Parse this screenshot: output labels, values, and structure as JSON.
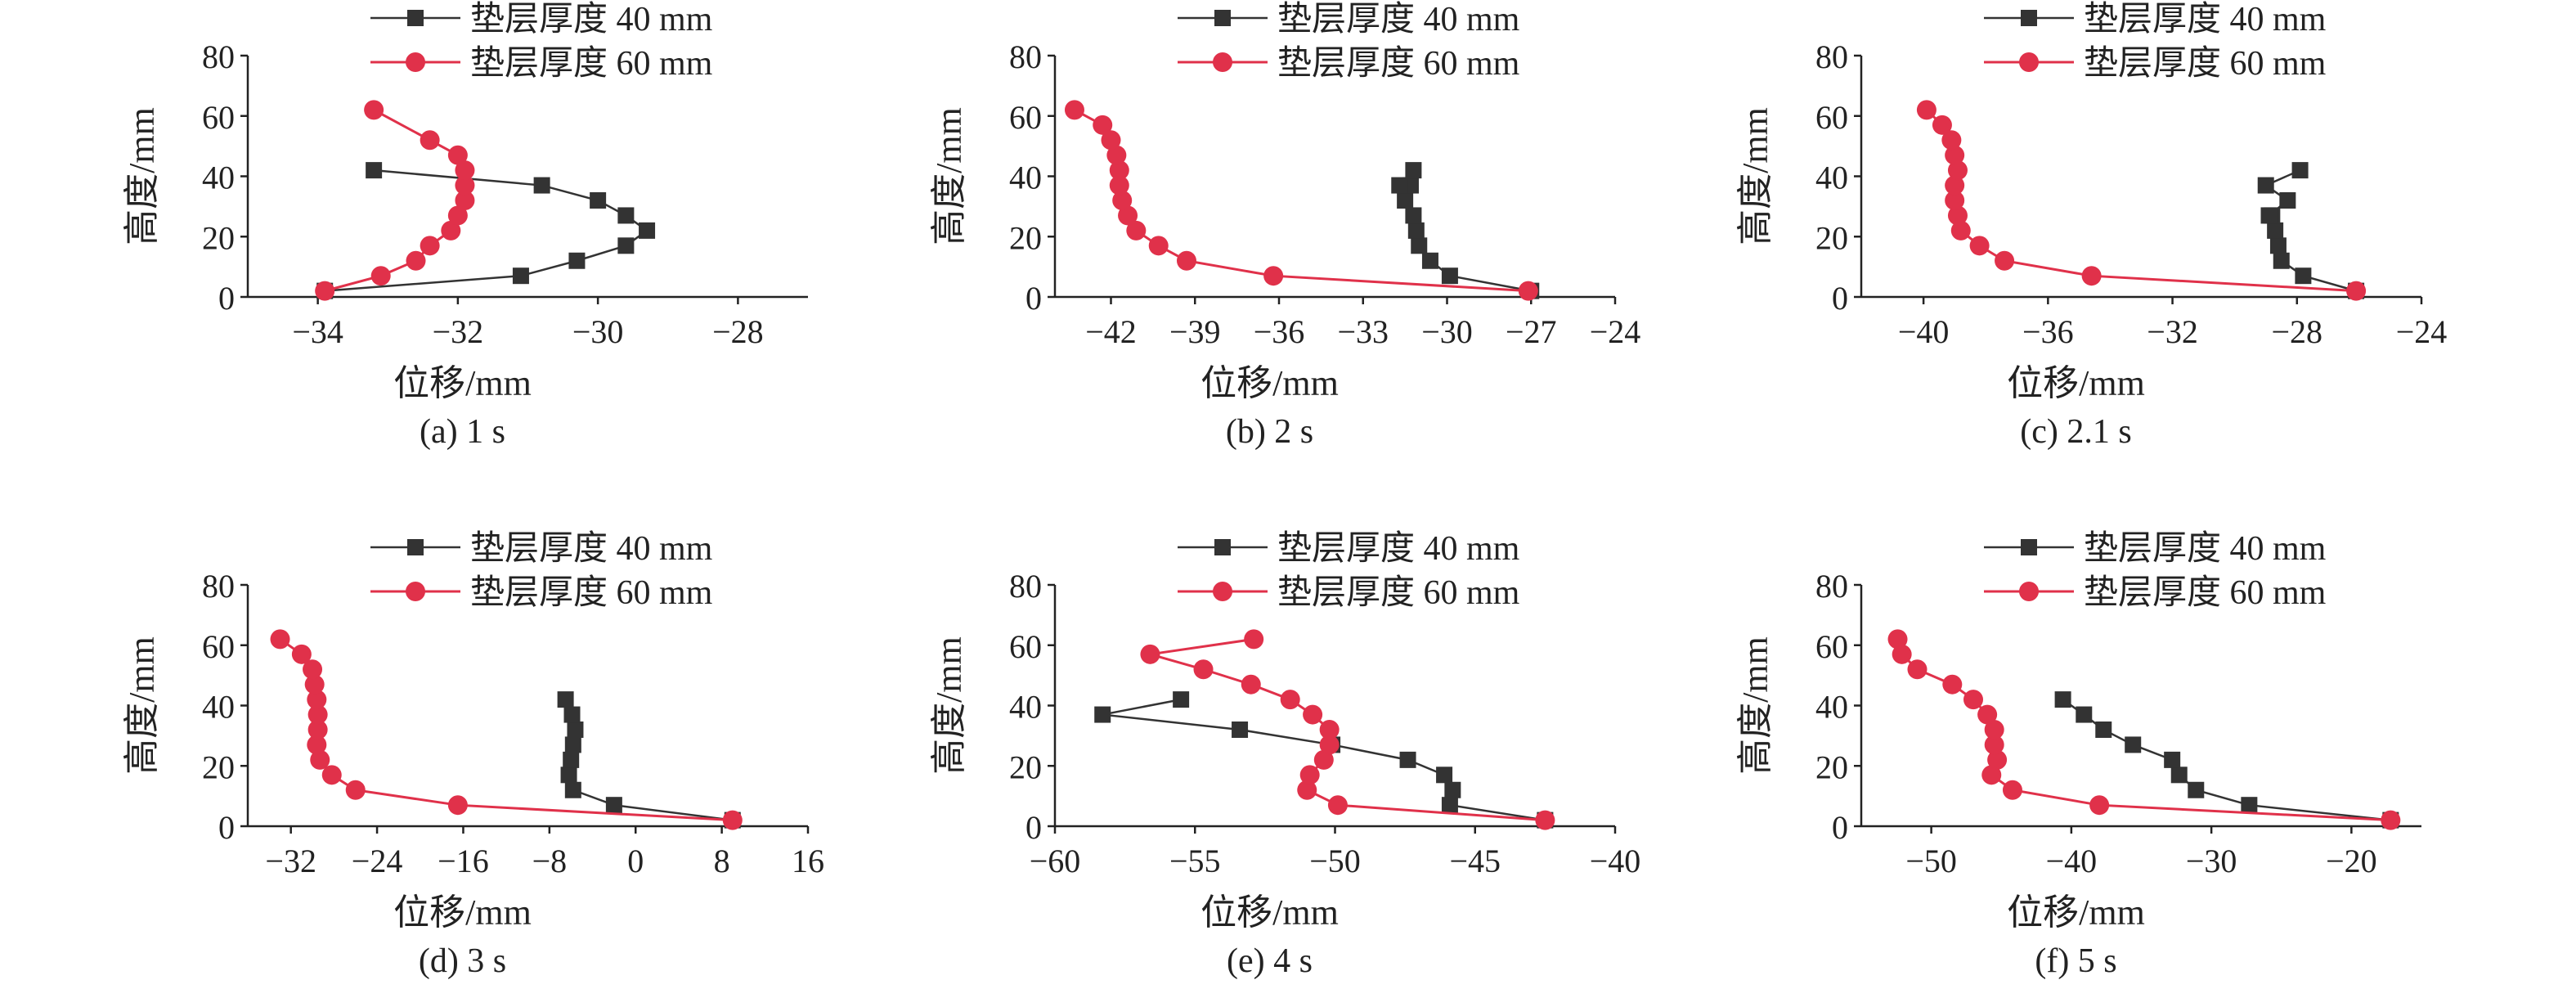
{
  "chart_data": [
    {
      "type": "line",
      "caption": "(a) 1 s",
      "xlabel": "位移/mm",
      "ylabel": "高度/mm",
      "xlim": [
        -35,
        -27
      ],
      "xticks": [
        -34,
        -32,
        -30,
        -28
      ],
      "ylim": [
        0,
        80
      ],
      "yticks": [
        0,
        20,
        40,
        60,
        80
      ],
      "legend_position": "top",
      "series": [
        {
          "name": "垫层厚度 40 mm",
          "color": "#333333",
          "marker": "square",
          "x": [
            -33.9,
            -31.1,
            -30.3,
            -29.6,
            -29.3,
            -29.6,
            -30.0,
            -30.8,
            -33.2
          ],
          "y": [
            2,
            7,
            12,
            17,
            22,
            27,
            32,
            37,
            42
          ]
        },
        {
          "name": "垫层厚度 60 mm",
          "color": "#e0314a",
          "marker": "circle",
          "x": [
            -33.9,
            -33.1,
            -32.6,
            -32.4,
            -32.1,
            -32.0,
            -31.9,
            -31.9,
            -31.9,
            -32.0,
            -32.4,
            -33.2
          ],
          "y": [
            2,
            7,
            12,
            17,
            22,
            27,
            32,
            37,
            42,
            47,
            52,
            62
          ]
        }
      ]
    },
    {
      "type": "line",
      "caption": "(b) 2 s",
      "xlabel": "位移/mm",
      "ylabel": "高度/mm",
      "xlim": [
        -44,
        -24
      ],
      "xticks": [
        -42,
        -39,
        -36,
        -33,
        -30,
        -27,
        -24
      ],
      "ylim": [
        0,
        80
      ],
      "yticks": [
        0,
        20,
        40,
        60,
        80
      ],
      "legend_position": "top",
      "series": [
        {
          "name": "垫层厚度 40 mm",
          "color": "#333333",
          "marker": "square",
          "x": [
            -27.0,
            -29.9,
            -30.6,
            -31.0,
            -31.1,
            -31.2,
            -31.5,
            -31.3,
            -31.7,
            -31.2
          ],
          "y": [
            2,
            7,
            12,
            17,
            22,
            27,
            32,
            37,
            37,
            42
          ]
        },
        {
          "name": "垫层厚度 60 mm",
          "color": "#e0314a",
          "marker": "circle",
          "x": [
            -27.1,
            -36.2,
            -39.3,
            -40.3,
            -41.1,
            -41.4,
            -41.6,
            -41.7,
            -41.7,
            -41.8,
            -42.0,
            -42.3,
            -43.3
          ],
          "y": [
            2,
            7,
            12,
            17,
            22,
            27,
            32,
            37,
            42,
            47,
            52,
            57,
            62
          ]
        }
      ]
    },
    {
      "type": "line",
      "caption": "(c) 2.1 s",
      "xlabel": "位移/mm",
      "ylabel": "高度/mm",
      "xlim": [
        -42,
        -24
      ],
      "xticks": [
        -40,
        -36,
        -32,
        -28,
        -24
      ],
      "ylim": [
        0,
        80
      ],
      "yticks": [
        0,
        20,
        40,
        60,
        80
      ],
      "legend_position": "top",
      "series": [
        {
          "name": "垫层厚度 40 mm",
          "color": "#333333",
          "marker": "square",
          "x": [
            -26.1,
            -27.8,
            -28.5,
            -28.6,
            -28.7,
            -28.8,
            -28.9,
            -28.3,
            -29.0,
            -27.9
          ],
          "y": [
            2,
            7,
            12,
            17,
            22,
            27,
            27,
            32,
            37,
            42
          ]
        },
        {
          "name": "垫层厚度 60 mm",
          "color": "#e0314a",
          "marker": "circle",
          "x": [
            -26.1,
            -34.6,
            -37.4,
            -38.2,
            -38.8,
            -38.9,
            -39.0,
            -39.0,
            -38.9,
            -39.0,
            -39.1,
            -39.4,
            -39.9
          ],
          "y": [
            2,
            7,
            12,
            17,
            22,
            27,
            32,
            37,
            42,
            47,
            52,
            57,
            62
          ]
        }
      ]
    },
    {
      "type": "line",
      "caption": "(d) 3 s",
      "xlabel": "位移/mm",
      "ylabel": "高度/mm",
      "xlim": [
        -36,
        16
      ],
      "xticks": [
        -32,
        -24,
        -16,
        -8,
        0,
        8,
        16
      ],
      "ylim": [
        0,
        80
      ],
      "yticks": [
        0,
        20,
        40,
        60,
        80
      ],
      "legend_position": "top",
      "series": [
        {
          "name": "垫层厚度 40 mm",
          "color": "#333333",
          "marker": "square",
          "x": [
            9.0,
            -2.0,
            -5.8,
            -6.2,
            -6.0,
            -5.8,
            -5.6,
            -5.9,
            -6.5
          ],
          "y": [
            2,
            7,
            12,
            17,
            22,
            27,
            32,
            37,
            42
          ]
        },
        {
          "name": "垫层厚度 60 mm",
          "color": "#e0314a",
          "marker": "circle",
          "x": [
            9.0,
            -16.5,
            -26.0,
            -28.2,
            -29.3,
            -29.6,
            -29.5,
            -29.5,
            -29.6,
            -29.8,
            -30.0,
            -31.0,
            -33.0
          ],
          "y": [
            2,
            7,
            12,
            17,
            22,
            27,
            32,
            37,
            42,
            47,
            52,
            57,
            62
          ]
        }
      ]
    },
    {
      "type": "line",
      "caption": "(e) 4 s",
      "xlabel": "位移/mm",
      "ylabel": "高度/mm",
      "xlim": [
        -60,
        -40
      ],
      "xticks": [
        -60,
        -55,
        -50,
        -45,
        -40
      ],
      "ylim": [
        0,
        80
      ],
      "yticks": [
        0,
        20,
        40,
        60,
        80
      ],
      "legend_position": "top",
      "series": [
        {
          "name": "垫层厚度 40 mm",
          "color": "#333333",
          "marker": "square",
          "x": [
            -42.5,
            -45.9,
            -45.8,
            -46.1,
            -47.4,
            -50.1,
            -53.4,
            -58.3,
            -55.5
          ],
          "y": [
            2,
            7,
            12,
            17,
            22,
            27,
            32,
            37,
            42
          ]
        },
        {
          "name": "垫层厚度 60 mm",
          "color": "#e0314a",
          "marker": "circle",
          "x": [
            -42.5,
            -49.9,
            -51.0,
            -50.9,
            -50.4,
            -50.2,
            -50.2,
            -50.8,
            -51.6,
            -53.0,
            -54.7,
            -56.6,
            -52.9
          ],
          "y": [
            2,
            7,
            12,
            17,
            22,
            27,
            32,
            37,
            42,
            47,
            52,
            57,
            62
          ]
        }
      ]
    },
    {
      "type": "line",
      "caption": "(f) 5 s",
      "xlabel": "位移/mm",
      "ylabel": "高度/mm",
      "xlim": [
        -55,
        -15
      ],
      "xticks": [
        -50,
        -40,
        -30,
        -20
      ],
      "ylim": [
        0,
        80
      ],
      "yticks": [
        0,
        20,
        40,
        60,
        80
      ],
      "legend_position": "top",
      "series": [
        {
          "name": "垫层厚度 40 mm",
          "color": "#333333",
          "marker": "square",
          "x": [
            -17.2,
            -27.3,
            -31.1,
            -32.3,
            -32.8,
            -35.6,
            -37.7,
            -39.1,
            -40.6
          ],
          "y": [
            2,
            7,
            12,
            17,
            22,
            27,
            32,
            37,
            42
          ]
        },
        {
          "name": "垫层厚度 60 mm",
          "color": "#e0314a",
          "marker": "circle",
          "x": [
            -17.2,
            -38.0,
            -44.2,
            -45.7,
            -45.3,
            -45.5,
            -45.5,
            -46.0,
            -47.0,
            -48.5,
            -51.0,
            -52.1,
            -52.4
          ],
          "y": [
            2,
            7,
            12,
            17,
            22,
            27,
            32,
            37,
            42,
            47,
            52,
            57,
            62
          ]
        }
      ]
    }
  ]
}
